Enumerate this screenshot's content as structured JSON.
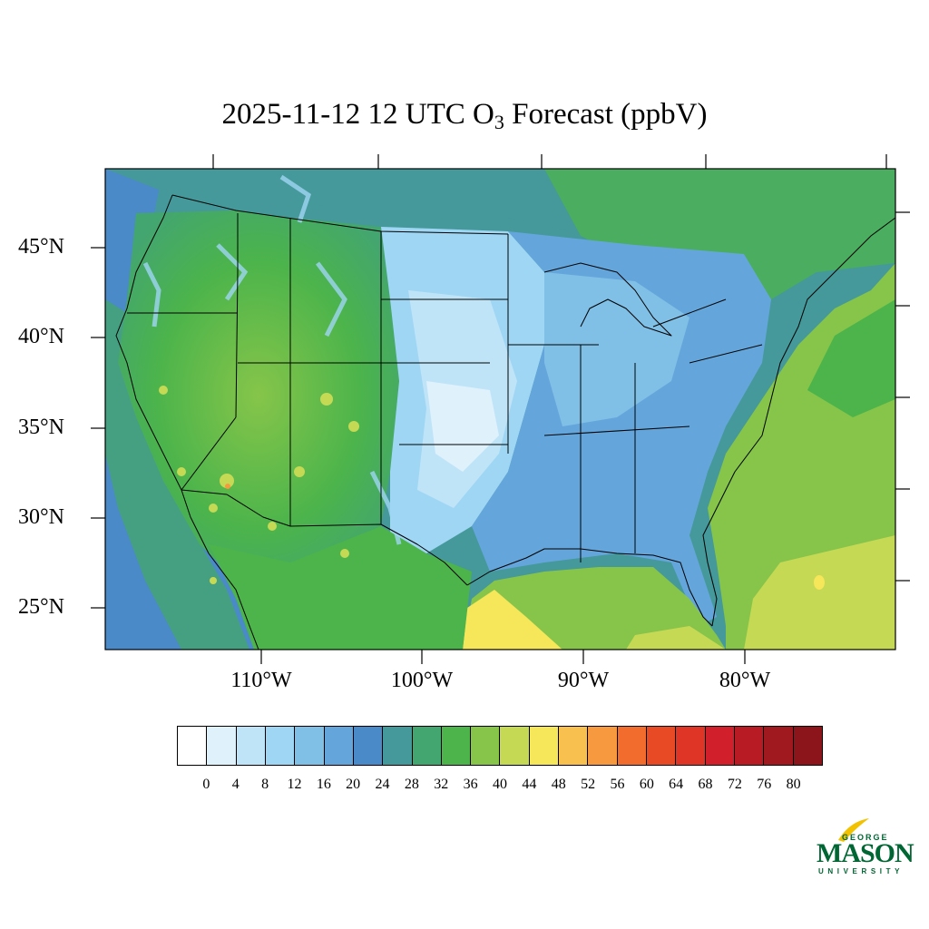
{
  "title": {
    "main": "2025-11-12 12 UTC O",
    "sub": "3",
    "rest": " Forecast (ppbV)"
  },
  "lat_labels": [
    "45°N",
    "40°N",
    "35°N",
    "30°N",
    "25°N"
  ],
  "lon_labels": [
    "110°W",
    "100°W",
    "90°W",
    "80°W"
  ],
  "colorbar": {
    "ticks": [
      "0",
      "4",
      "8",
      "12",
      "16",
      "20",
      "24",
      "28",
      "32",
      "36",
      "40",
      "44",
      "48",
      "52",
      "56",
      "60",
      "64",
      "68",
      "72",
      "76",
      "80"
    ],
    "colors": [
      "#ffffff",
      "#dff1fb",
      "#bfe4f8",
      "#9fd6f4",
      "#80bfe6",
      "#64a6db",
      "#4a8ac8",
      "#45999a",
      "#43a570",
      "#4cb44b",
      "#86c54a",
      "#c6d955",
      "#f5e65a",
      "#f8c04e",
      "#f79a3f",
      "#f26c2d",
      "#e84a26",
      "#de3526",
      "#d11f2b",
      "#b81b24",
      "#a0191f",
      "#8c151b"
    ]
  },
  "map_colors": {
    "ocean_west": "#4a8ac8",
    "ocean_east": "#86c54a",
    "gulf": "#c6d955",
    "canada": "#45999a",
    "plains": "#9fd6f4",
    "west": "#4cb44b"
  },
  "logo": {
    "george": "GEORGE",
    "mason": "MASON",
    "university": "UNIVERSITY",
    "leaf_color": "#f2c200"
  }
}
